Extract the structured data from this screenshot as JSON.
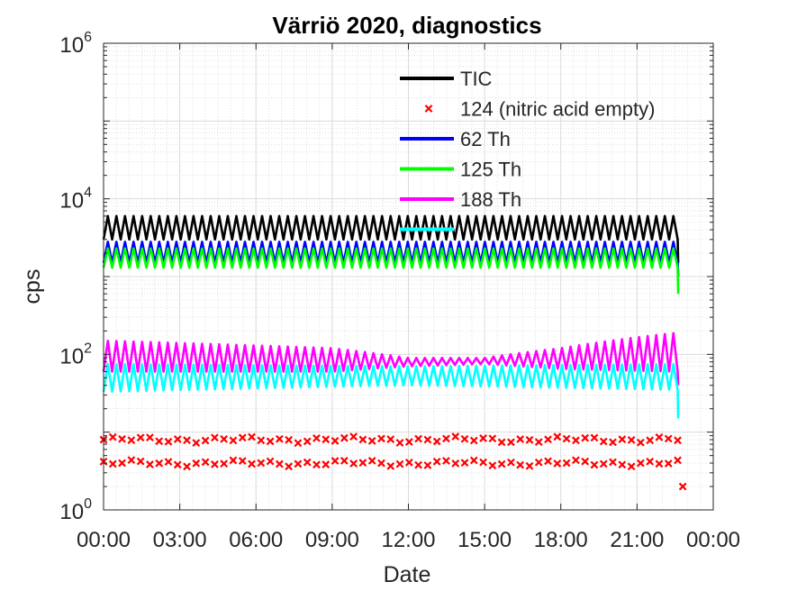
{
  "chart_data": {
    "type": "line",
    "title": "Värriö 2020, diagnostics",
    "xlabel": "Date",
    "ylabel": "cps",
    "y_scale": "log",
    "ylim": [
      1,
      1000000
    ],
    "y_tick_labels": [
      {
        "base": "10",
        "exp": "0",
        "value": 1
      },
      {
        "base": "10",
        "exp": "2",
        "value": 100
      },
      {
        "base": "10",
        "exp": "4",
        "value": 10000
      },
      {
        "base": "10",
        "exp": "6",
        "value": 1000000
      }
    ],
    "xlim_hours": [
      0,
      24
    ],
    "x_tick_labels": [
      "00:00",
      "03:00",
      "06:00",
      "09:00",
      "12:00",
      "15:00",
      "18:00",
      "21:00",
      "00:00"
    ],
    "grid": true,
    "minor_grid": true,
    "legend_position": "top-right",
    "series": [
      {
        "name": "TIC",
        "color": "#000000",
        "style": "line",
        "oscillating": true,
        "x_hours": [
          0,
          12,
          22.6
        ],
        "low": [
          3000,
          3000,
          3000
        ],
        "high": [
          6000,
          6000,
          6000
        ],
        "end_value": 1500
      },
      {
        "name": "124 (nitric acid empty)",
        "color": "#ff0000",
        "style": "x-markers",
        "x_hours": [
          0,
          12,
          22.6
        ],
        "band_values": [
          8,
          4
        ],
        "outlier": {
          "x_hours": 22.8,
          "value": 2
        }
      },
      {
        "name": "62 Th",
        "color": "#0000ff",
        "style": "line",
        "oscillating": true,
        "x_hours": [
          0,
          12,
          22.6
        ],
        "low": [
          1500,
          1500,
          1500
        ],
        "high": [
          2800,
          2800,
          2800
        ],
        "end_value": 1000
      },
      {
        "name": "125 Th",
        "color": "#00ff00",
        "style": "line",
        "oscillating": true,
        "x_hours": [
          0,
          12,
          22.6
        ],
        "low": [
          1300,
          1300,
          1300
        ],
        "high": [
          2300,
          2300,
          2300
        ],
        "end_value": 600
      },
      {
        "name": "188 Th",
        "color": "#ff00ff",
        "style": "line",
        "oscillating": true,
        "x_hours": [
          0,
          9,
          12,
          15,
          18,
          22.6
        ],
        "low": [
          60,
          60,
          70,
          75,
          65,
          60
        ],
        "high": [
          150,
          120,
          90,
          90,
          120,
          190
        ],
        "end_value": 40
      },
      {
        "name": "",
        "color": "#00ffff",
        "style": "line",
        "oscillating": true,
        "x_hours": [
          0,
          12,
          22.6
        ],
        "low": [
          33,
          40,
          35
        ],
        "high": [
          75,
          70,
          75
        ],
        "end_value": 15
      }
    ]
  }
}
